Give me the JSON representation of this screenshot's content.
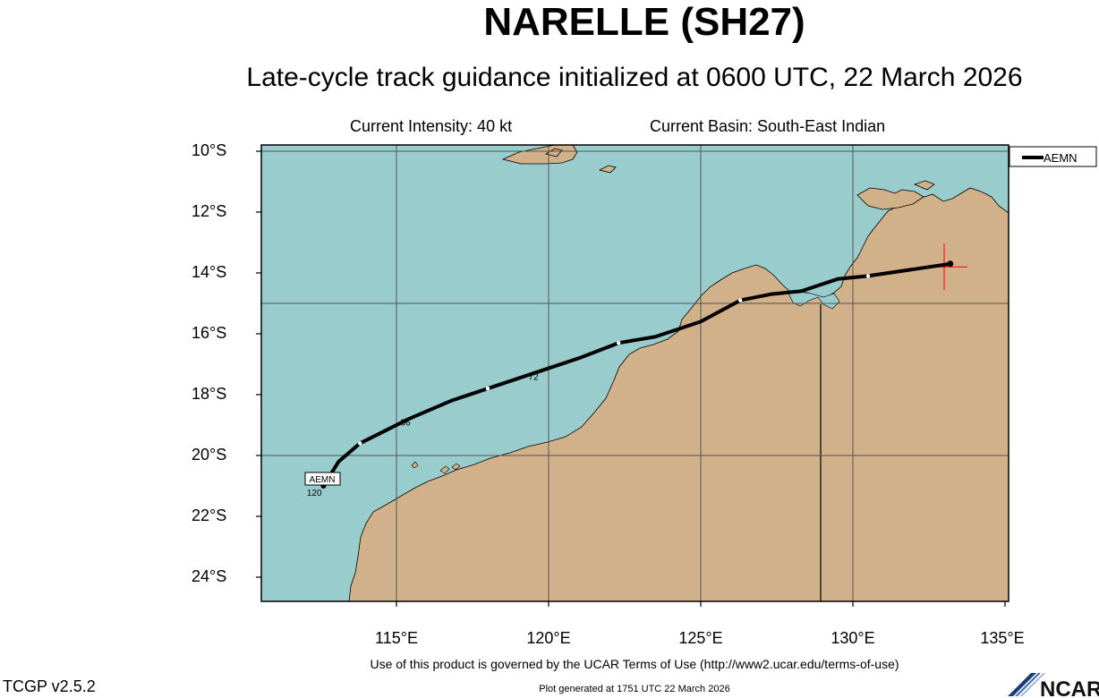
{
  "header": {
    "title": "NARELLE (SH27)",
    "subtitle": "Late-cycle track guidance initialized at 0600 UTC, 22 March 2026",
    "current_intensity": "Current Intensity: 40 kt",
    "current_basin": "Current Basin: South-East Indian"
  },
  "map": {
    "lat_labels": [
      "10°S",
      "12°S",
      "14°S",
      "16°S",
      "18°S",
      "20°S",
      "22°S",
      "24°S"
    ],
    "lon_labels": [
      "115°E",
      "120°E",
      "125°E",
      "130°E",
      "135°E"
    ],
    "colors": {
      "ocean": "#99cccc",
      "land": "#d0b18a",
      "track": "#000000",
      "current_position": "#ff0000"
    },
    "legend": {
      "model": "AEMN"
    },
    "track_label": "AEMN",
    "current_position": {
      "lon": 133.0,
      "lat": -13.8
    },
    "track": {
      "model": "AEMN",
      "points": [
        {
          "lon": 133.2,
          "lat": -13.7
        },
        {
          "lon": 130.5,
          "lat": -14.1
        },
        {
          "lon": 129.5,
          "lat": -14.2
        },
        {
          "lon": 128.3,
          "lat": -14.6
        },
        {
          "lon": 127.3,
          "lat": -14.7
        },
        {
          "lon": 126.3,
          "lat": -14.9
        },
        {
          "lon": 125.0,
          "lat": -15.6
        },
        {
          "lon": 123.5,
          "lat": -16.1
        },
        {
          "lon": 122.3,
          "lat": -16.3
        },
        {
          "lon": 121.0,
          "lat": -16.8
        },
        {
          "lon": 119.5,
          "lat": -17.3
        },
        {
          "lon": 118.0,
          "lat": -17.8
        },
        {
          "lon": 116.8,
          "lat": -18.2
        },
        {
          "lon": 115.4,
          "lat": -18.8
        },
        {
          "lon": 113.8,
          "lat": -19.6
        },
        {
          "lon": 113.1,
          "lat": -20.2
        },
        {
          "lon": 112.6,
          "lat": -21.0
        }
      ],
      "markers": [
        {
          "lon": 130.5,
          "lat": -14.1
        },
        {
          "lon": 126.3,
          "lat": -14.9
        },
        {
          "lon": 122.3,
          "lat": -16.3
        },
        {
          "lon": 118.0,
          "lat": -17.8
        },
        {
          "lon": 113.8,
          "lat": -19.6
        }
      ],
      "hour_labels": [
        {
          "text": "72",
          "lon": 119.5,
          "lat": -17.4
        },
        {
          "text": "96",
          "lon": 115.3,
          "lat": -18.9
        },
        {
          "text": "120",
          "lon": 112.3,
          "lat": -21.2
        }
      ]
    }
  },
  "footer": {
    "terms": "Use of this product is governed by the UCAR Terms of Use (http://www2.ucar.edu/terms-of-use)",
    "version": "TCGP v2.5.2",
    "generated": "Plot generated at 1751 UTC   22 March 2026",
    "logo": "NCAR"
  }
}
